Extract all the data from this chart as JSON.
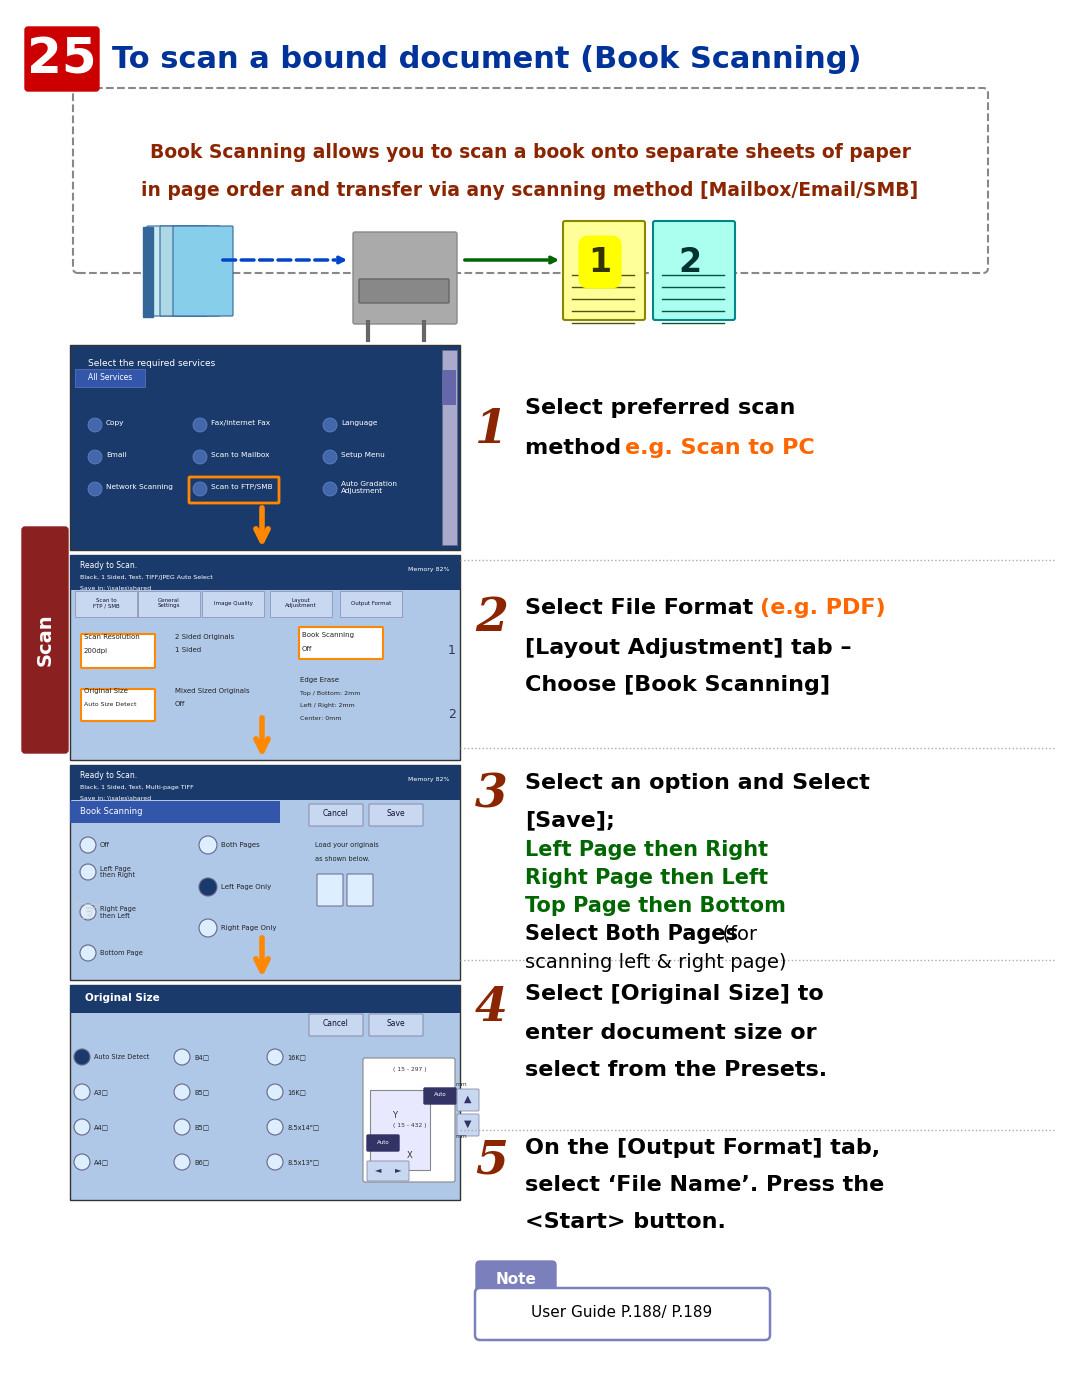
{
  "title_num": "25",
  "title_text": "To scan a bound document (Book Scanning)",
  "title_num_color": "#cc0000",
  "title_text_color": "#003399",
  "bg_color": "#ffffff",
  "intro_text_line1": "Book Scanning allows you to scan a book onto separate sheets of paper",
  "intro_text_line2": "in page order and transfer via any scanning method [Mailbox/Email/SMB]",
  "intro_text_color": "#8B2500",
  "step1_num": "1",
  "step1_text1": "Select preferred scan",
  "step1_text2": "method ",
  "step1_highlight": "e.g. Scan to PC",
  "step1_highlight_color": "#ff6600",
  "step2_num": "2",
  "step2_text1": "Select File Format ",
  "step2_highlight": "(e.g. PDF)",
  "step2_highlight_color": "#ff6600",
  "step2_text2": "[Layout Adjustment] tab –",
  "step2_text3": "Choose [Book Scanning]",
  "step3_num": "3",
  "step3_text1": "Select an option and Select",
  "step3_text2": "[Save];",
  "step3_green1": "Left Page then Right",
  "step3_green2": "Right Page then Left",
  "step3_green3": "Top Page then Bottom",
  "step3_green_color": "#006600",
  "step3_text3": "Select Both Pages",
  "step3_text4": "  (for",
  "step3_text5": "scanning left & right page)",
  "step4_num": "4",
  "step4_text1": "Select [Original Size] to",
  "step4_text2": "enter document size or",
  "step4_text3": "select from the Presets.",
  "step5_num": "5",
  "step5_text1": "On the [Output Format] tab,",
  "step5_text2": "select ‘File Name’. Press the",
  "step5_text3": "<Start> button.",
  "note_label": "Note",
  "note_text": "User Guide P.188/ P.189",
  "note_bg": "#7b7fbc",
  "note_border": "#7b7fbc",
  "step_num_color": "#8B2500",
  "dotted_line_color": "#aaaaaa",
  "scan_label": "Scan",
  "scan_label_bg": "#8B2020",
  "orange_color": "#ff8800",
  "dark_blue": "#1a3a6b",
  "screen_bg": "#b0c8e8",
  "screen_text_bg": "#c8d8f0"
}
